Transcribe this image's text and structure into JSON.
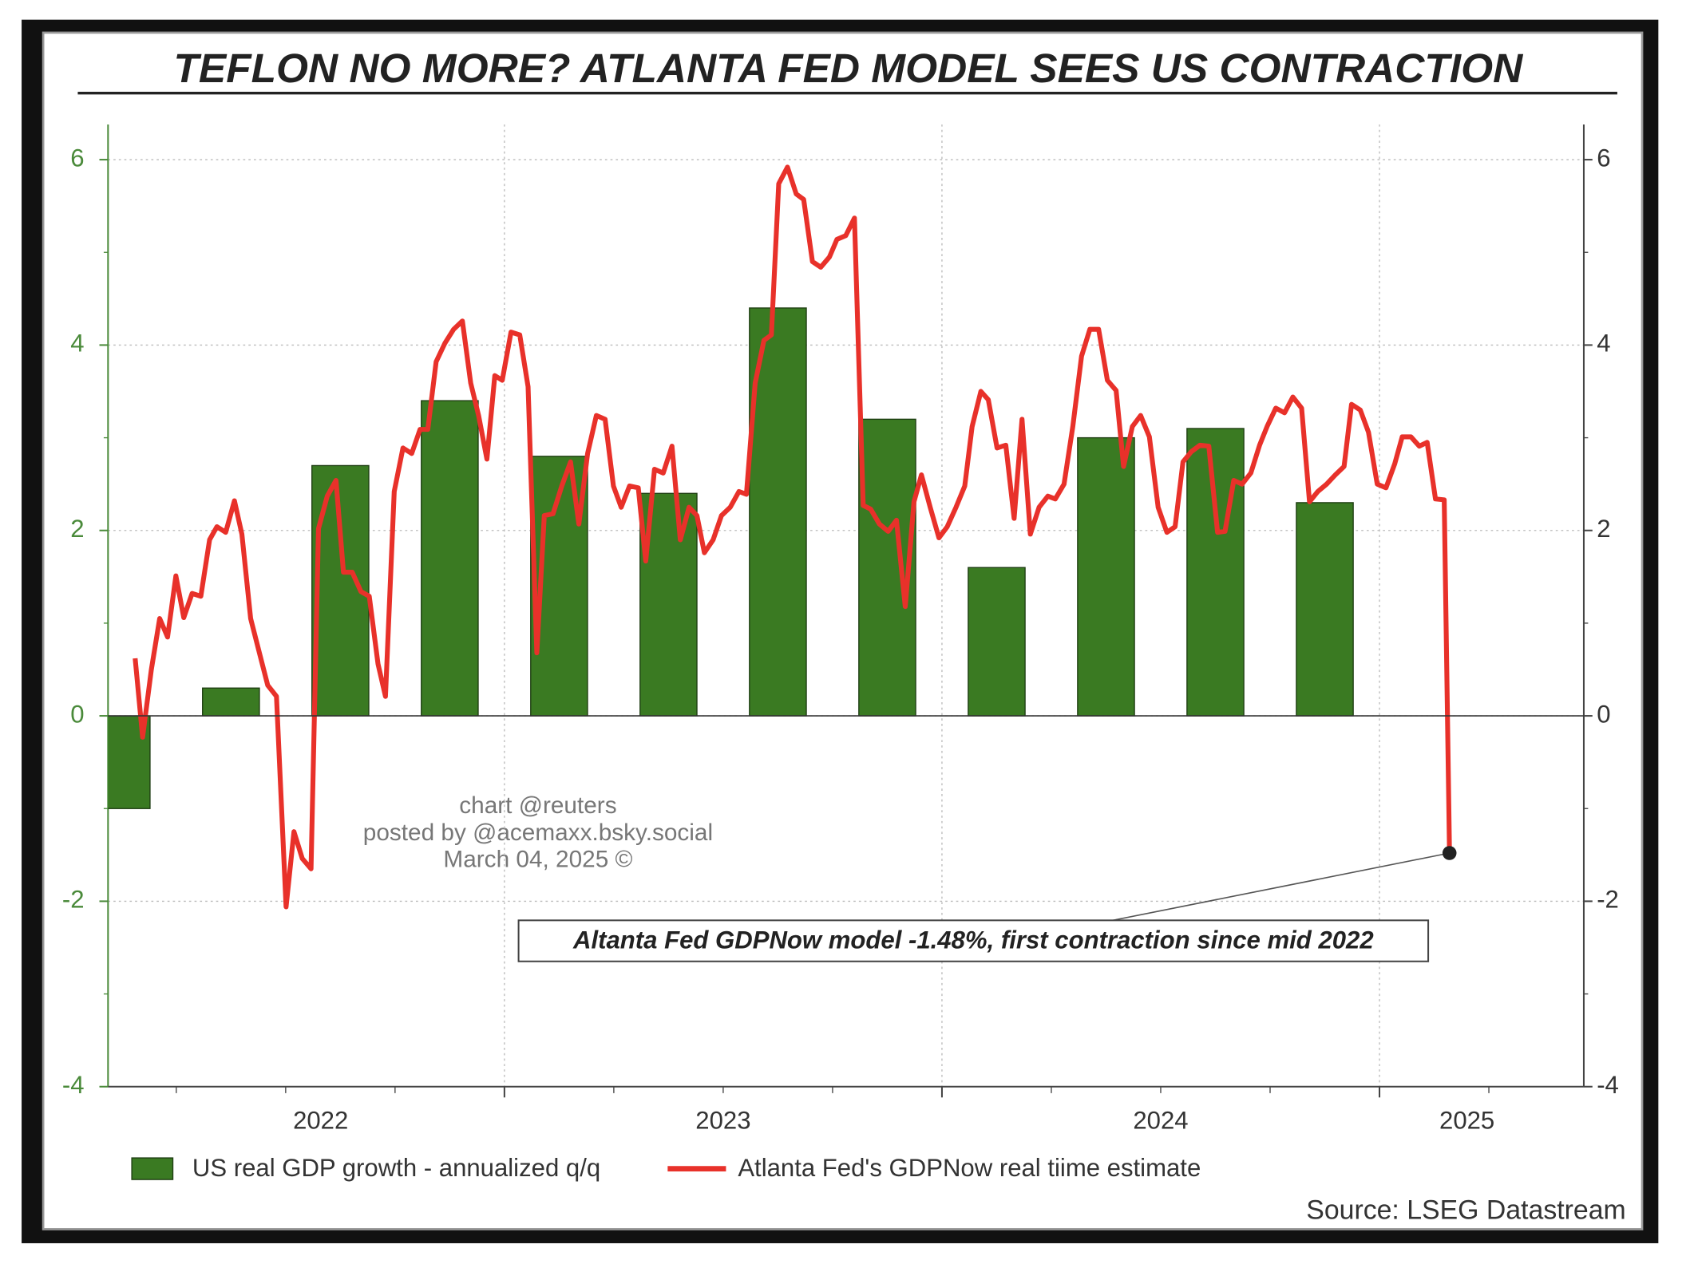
{
  "chart_data": {
    "type": "combo",
    "title": "TEFLON NO MORE? ATLANTA FED MODEL SEES US CONTRACTION",
    "source": "Source: LSEG Datastream",
    "watermark": [
      "chart @reuters",
      "posted by @acemaxx.bsky.social",
      "March 04, 2025 ©"
    ],
    "annotation": "Altanta Fed GDPNow model -1.48%, first contraction since mid 2022",
    "xlim": [
      2022.094,
      2025.467
    ],
    "xlabels": [
      {
        "value": 2022.58,
        "label": "2022"
      },
      {
        "value": 2023.5,
        "label": "2023"
      },
      {
        "value": 2024.5,
        "label": "2024"
      },
      {
        "value": 2025.2,
        "label": "2025"
      }
    ],
    "xgrid": [
      2023,
      2024,
      2025
    ],
    "xminorticks": [
      2022.25,
      2022.5,
      2022.75,
      2023.25,
      2023.5,
      2023.75,
      2024.25,
      2024.5,
      2024.75,
      2025.25
    ],
    "ylim": [
      -4,
      6.38
    ],
    "yticks": [
      -4,
      -2,
      0,
      2,
      4,
      6
    ],
    "yminorticks": [
      -3,
      -1,
      1,
      3,
      5
    ],
    "grid": true,
    "series": [
      {
        "name": "US real GDP growth - annualized q/q",
        "type": "bar",
        "color": "#3a7a22",
        "x": [
          2022.125,
          2022.375,
          2022.625,
          2022.875,
          2023.125,
          2023.375,
          2023.625,
          2023.875,
          2024.125,
          2024.375,
          2024.625,
          2024.875
        ],
        "values": [
          -1.0,
          0.3,
          2.7,
          3.4,
          2.8,
          2.4,
          4.4,
          3.2,
          1.6,
          3.0,
          3.1,
          2.3
        ]
      },
      {
        "name": "Atlanta Fed's GDPNow real tiime estimate",
        "type": "line",
        "color": "#e8312a",
        "x": [
          2022.156,
          2022.173,
          2022.193,
          2022.212,
          2022.23,
          2022.249,
          2022.267,
          2022.286,
          2022.306,
          2022.326,
          2022.343,
          2022.363,
          2022.383,
          2022.4,
          2022.42,
          2022.44,
          2022.459,
          2022.479,
          2022.501,
          2022.519,
          2022.538,
          2022.558,
          2022.575,
          2022.595,
          2022.615,
          2022.632,
          2022.652,
          2022.672,
          2022.691,
          2022.711,
          2022.728,
          2022.748,
          2022.768,
          2022.788,
          2022.807,
          2022.825,
          2022.844,
          2022.864,
          2022.884,
          2022.904,
          2022.923,
          2022.941,
          2022.96,
          2022.978,
          2022.995,
          2023.015,
          2023.035,
          2023.054,
          2023.074,
          2023.091,
          2023.111,
          2023.131,
          2023.151,
          2023.17,
          2023.19,
          2023.21,
          2023.23,
          2023.249,
          2023.267,
          2023.286,
          2023.306,
          2023.323,
          2023.343,
          2023.363,
          2023.383,
          2023.402,
          2023.422,
          2023.44,
          2023.457,
          2023.477,
          2023.496,
          2023.516,
          2023.536,
          2023.553,
          2023.573,
          2023.593,
          2023.61,
          2023.627,
          2023.647,
          2023.667,
          2023.684,
          2023.704,
          2023.723,
          2023.743,
          2023.76,
          2023.78,
          2023.8,
          2023.82,
          2023.837,
          2023.857,
          2023.877,
          2023.896,
          2023.916,
          2023.936,
          2023.953,
          2023.973,
          2023.993,
          2024.012,
          2024.032,
          2024.052,
          2024.069,
          2024.089,
          2024.106,
          2024.126,
          2024.146,
          2024.165,
          2024.183,
          2024.202,
          2024.222,
          2024.242,
          2024.259,
          2024.279,
          2024.299,
          2024.319,
          2024.338,
          2024.358,
          2024.378,
          2024.398,
          2024.415,
          2024.435,
          2024.454,
          2024.474,
          2024.494,
          2024.514,
          2024.533,
          2024.551,
          2024.57,
          2024.59,
          2024.61,
          2024.63,
          2024.647,
          2024.667,
          2024.686,
          2024.706,
          2024.726,
          2024.743,
          2024.763,
          2024.783,
          2024.802,
          2024.822,
          2024.84,
          2024.859,
          2024.879,
          2024.899,
          2024.919,
          2024.936,
          2024.956,
          2024.975,
          2024.995,
          2025.015,
          2025.035,
          2025.052,
          2025.072,
          2025.091,
          2025.109,
          2025.128,
          2025.148,
          2025.16
        ],
        "values": [
          0.62,
          -0.23,
          0.5,
          1.05,
          0.85,
          1.51,
          1.06,
          1.32,
          1.29,
          1.9,
          2.04,
          1.98,
          2.32,
          1.96,
          1.05,
          0.68,
          0.33,
          0.21,
          -2.06,
          -1.25,
          -1.54,
          -1.65,
          2.02,
          2.37,
          2.54,
          1.55,
          1.55,
          1.34,
          1.29,
          0.56,
          0.21,
          2.42,
          2.89,
          2.83,
          3.09,
          3.09,
          3.82,
          4.02,
          4.17,
          4.26,
          3.59,
          3.24,
          2.77,
          3.67,
          3.62,
          4.14,
          4.11,
          3.55,
          0.68,
          2.16,
          2.18,
          2.48,
          2.74,
          2.07,
          2.83,
          3.24,
          3.2,
          2.48,
          2.25,
          2.48,
          2.46,
          1.67,
          2.66,
          2.62,
          2.91,
          1.9,
          2.25,
          2.16,
          1.76,
          1.9,
          2.16,
          2.25,
          2.42,
          2.39,
          3.59,
          4.05,
          4.11,
          5.74,
          5.92,
          5.63,
          5.57,
          4.9,
          4.84,
          4.95,
          5.14,
          5.18,
          5.37,
          2.27,
          2.23,
          2.07,
          1.99,
          2.11,
          1.18,
          2.31,
          2.6,
          2.25,
          1.92,
          2.04,
          2.25,
          2.48,
          3.12,
          3.5,
          3.41,
          2.89,
          2.92,
          2.13,
          3.2,
          1.96,
          2.25,
          2.37,
          2.34,
          2.5,
          3.12,
          3.88,
          4.17,
          4.17,
          3.62,
          3.51,
          2.69,
          3.12,
          3.24,
          3.01,
          2.25,
          1.98,
          2.04,
          2.74,
          2.85,
          2.92,
          2.91,
          1.98,
          1.99,
          2.54,
          2.5,
          2.62,
          2.92,
          3.12,
          3.32,
          3.27,
          3.44,
          3.32,
          2.31,
          2.42,
          2.5,
          2.6,
          2.69,
          3.36,
          3.3,
          3.06,
          2.5,
          2.46,
          2.72,
          3.01,
          3.01,
          2.91,
          2.95,
          2.34,
          2.33,
          -1.48
        ]
      }
    ]
  }
}
